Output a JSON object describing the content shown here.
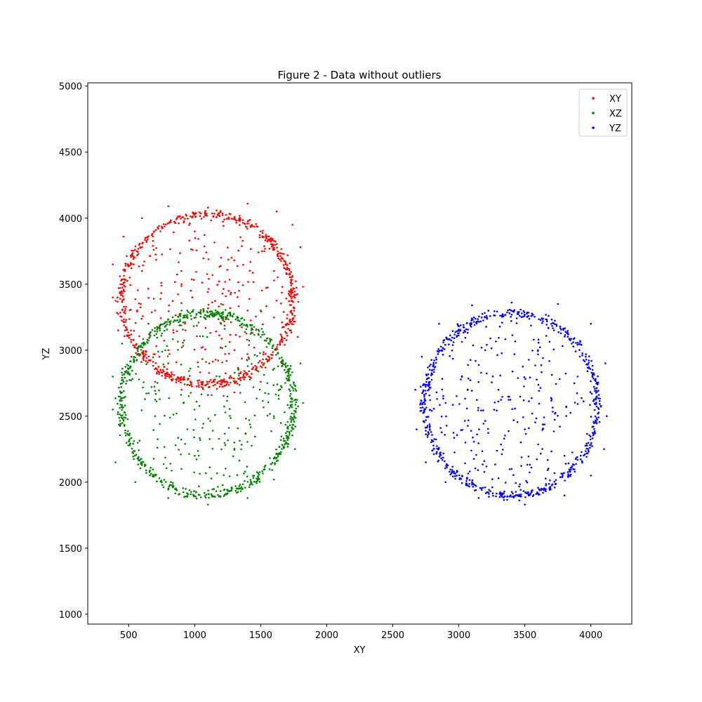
{
  "chart_data": {
    "type": "scatter",
    "title": "Figure 2 - Data without outliers",
    "xlabel": "XY",
    "ylabel": "YZ",
    "xlim": [
      190,
      4310
    ],
    "ylim": [
      925,
      5025
    ],
    "xticks": [
      500,
      1000,
      1500,
      2000,
      2500,
      3000,
      3500,
      4000
    ],
    "yticks": [
      1000,
      1500,
      2000,
      2500,
      3000,
      3500,
      4000,
      4500,
      5000
    ],
    "grid": false,
    "legend_position": "upper-right",
    "series": [
      {
        "name": "XY",
        "color": "#ff0000",
        "shape": "ring",
        "center": [
          1095,
          3385
        ],
        "radius": [
          725,
          715
        ],
        "values": [
          [
            1820,
            3480
          ],
          [
            1800,
            3780
          ],
          [
            1740,
            3950
          ],
          [
            1620,
            4050
          ],
          [
            1400,
            4110
          ],
          [
            1100,
            4080
          ],
          [
            800,
            4090
          ],
          [
            600,
            4000
          ],
          [
            460,
            3860
          ],
          [
            380,
            3650
          ],
          [
            380,
            3400
          ],
          [
            420,
            3150
          ],
          [
            520,
            2950
          ],
          [
            700,
            2760
          ],
          [
            900,
            2700
          ],
          [
            1100,
            2660
          ],
          [
            1300,
            2680
          ],
          [
            1500,
            2760
          ],
          [
            1660,
            2900
          ],
          [
            1780,
            3100
          ],
          [
            700,
            3300
          ],
          [
            900,
            3500
          ],
          [
            1200,
            3700
          ],
          [
            1400,
            3300
          ],
          [
            1000,
            3900
          ],
          [
            1600,
            3600
          ],
          [
            800,
            3000
          ],
          [
            1300,
            3000
          ],
          [
            600,
            3600
          ],
          [
            1500,
            3900
          ]
        ]
      },
      {
        "name": "XZ",
        "color": "#008000",
        "shape": "ring",
        "center": [
          1095,
          2590
        ],
        "radius": [
          725,
          765
        ],
        "values": [
          [
            1820,
            2600
          ],
          [
            1800,
            2900
          ],
          [
            1720,
            3150
          ],
          [
            1500,
            3300
          ],
          [
            1200,
            3350
          ],
          [
            900,
            3300
          ],
          [
            650,
            3200
          ],
          [
            450,
            3050
          ],
          [
            380,
            2800
          ],
          [
            380,
            2550
          ],
          [
            400,
            2150
          ],
          [
            550,
            2000
          ],
          [
            800,
            1880
          ],
          [
            1100,
            1830
          ],
          [
            1400,
            1880
          ],
          [
            1600,
            2020
          ],
          [
            1760,
            2250
          ],
          [
            1000,
            2200
          ],
          [
            1300,
            2300
          ],
          [
            1600,
            2500
          ],
          [
            700,
            2500
          ],
          [
            1200,
            3200
          ],
          [
            800,
            2900
          ],
          [
            1500,
            3100
          ],
          [
            600,
            2150
          ],
          [
            900,
            2100
          ]
        ]
      },
      {
        "name": "YZ",
        "color": "#0000ff",
        "shape": "ring",
        "center": [
          3395,
          2590
        ],
        "radius": [
          730,
          770
        ],
        "values": [
          [
            4120,
            2500
          ],
          [
            4110,
            2900
          ],
          [
            4000,
            3200
          ],
          [
            3750,
            3350
          ],
          [
            3400,
            3360
          ],
          [
            3100,
            3340
          ],
          [
            2850,
            3200
          ],
          [
            2720,
            2950
          ],
          [
            2670,
            2700
          ],
          [
            2680,
            2400
          ],
          [
            2750,
            2150
          ],
          [
            2900,
            2000
          ],
          [
            3150,
            1880
          ],
          [
            3500,
            1830
          ],
          [
            3800,
            1900
          ],
          [
            4000,
            2050
          ],
          [
            4100,
            2250
          ],
          [
            3600,
            3000
          ],
          [
            3200,
            3000
          ],
          [
            2900,
            2600
          ],
          [
            3300,
            2700
          ],
          [
            3800,
            2200
          ],
          [
            3400,
            2100
          ],
          [
            3900,
            2800
          ],
          [
            3050,
            2300
          ],
          [
            3500,
            2400
          ]
        ]
      }
    ]
  }
}
